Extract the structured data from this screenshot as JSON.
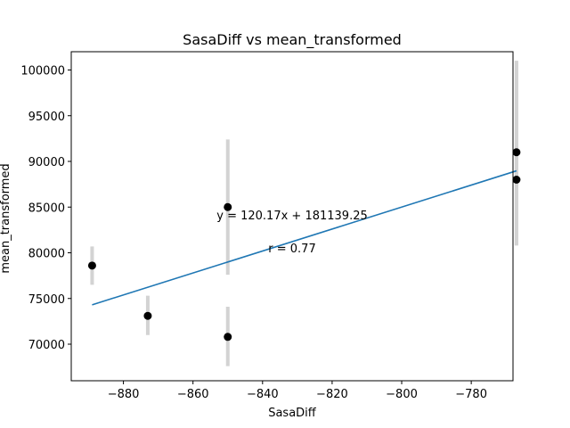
{
  "chart_data": {
    "type": "scatter",
    "title": "SasaDiff vs mean_transformed",
    "xlabel": "SasaDiff",
    "ylabel": "mean_transformed",
    "xlim": [
      -895,
      -768
    ],
    "ylim": [
      66000,
      102000
    ],
    "xticks": [
      -880,
      -860,
      -840,
      -820,
      -800,
      -780
    ],
    "yticks": [
      70000,
      75000,
      80000,
      85000,
      90000,
      95000,
      100000
    ],
    "grid": false,
    "points": [
      {
        "x": -889,
        "y": 78600,
        "err_low": 76500,
        "err_high": 80700
      },
      {
        "x": -873,
        "y": 73100,
        "err_low": 71000,
        "err_high": 75300
      },
      {
        "x": -850,
        "y": 85000,
        "err_low": 77600,
        "err_high": 92400
      },
      {
        "x": -850,
        "y": 70800,
        "err_low": 67600,
        "err_high": 74100
      },
      {
        "x": -767,
        "y": 91000,
        "err_low": 80800,
        "err_high": 101000
      },
      {
        "x": -767,
        "y": 88000,
        "err_low": 80800,
        "err_high": 101000
      }
    ],
    "fit_line": {
      "x": [
        -889,
        -767
      ],
      "slope": 120.17,
      "intercept": 181139.25
    },
    "annotations": {
      "equation": "y = 120.17x + 181139.25",
      "r": "r = 0.77"
    },
    "colors": {
      "points": "#000000",
      "errorbars": "#d3d3d3",
      "fit_line": "#1f77b4"
    }
  }
}
